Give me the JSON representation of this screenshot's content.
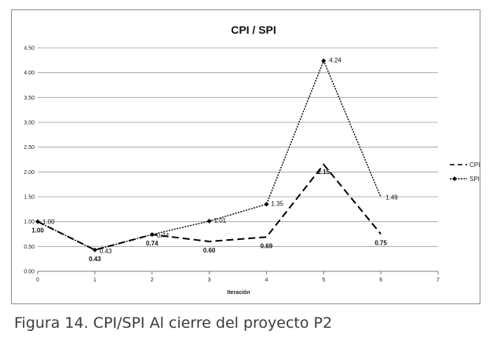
{
  "chart_data": {
    "type": "line",
    "title": "CPI / SPI",
    "xlabel": "Iteración",
    "ylabel": "",
    "xlim": [
      0,
      7
    ],
    "ylim": [
      0,
      4.5
    ],
    "x_ticks": [
      "0",
      "1",
      "2",
      "3",
      "4",
      "5",
      "6",
      "7"
    ],
    "y_ticks": [
      "0.00",
      "0.50",
      "1.00",
      "1.50",
      "2.00",
      "2.50",
      "3.00",
      "3.50",
      "4.00",
      "4.50"
    ],
    "grid": "horizontal",
    "legend_position": "right",
    "series": [
      {
        "name": "CPI",
        "style": "long-dash",
        "color": "#000000",
        "x": [
          0,
          1,
          2,
          3,
          4,
          5,
          6
        ],
        "values": [
          1.0,
          0.43,
          0.74,
          0.6,
          0.69,
          2.15,
          0.75
        ],
        "labels": [
          "1.00",
          "0.43",
          "0.74",
          "0.60",
          "0.69",
          "2.15",
          "0.75"
        ]
      },
      {
        "name": "SPI",
        "style": "dotted-diamond",
        "color": "#000000",
        "x": [
          0,
          1,
          2,
          3,
          4,
          5,
          6
        ],
        "values": [
          1.0,
          0.43,
          0.74,
          1.01,
          1.35,
          4.24,
          1.49
        ],
        "labels": [
          "1.00",
          "0.43",
          "0.74",
          "1.01",
          "1.35",
          "4.24",
          "1.49"
        ]
      }
    ]
  },
  "caption": "Figura 14. CPI/SPI Al cierre del proyecto P2"
}
